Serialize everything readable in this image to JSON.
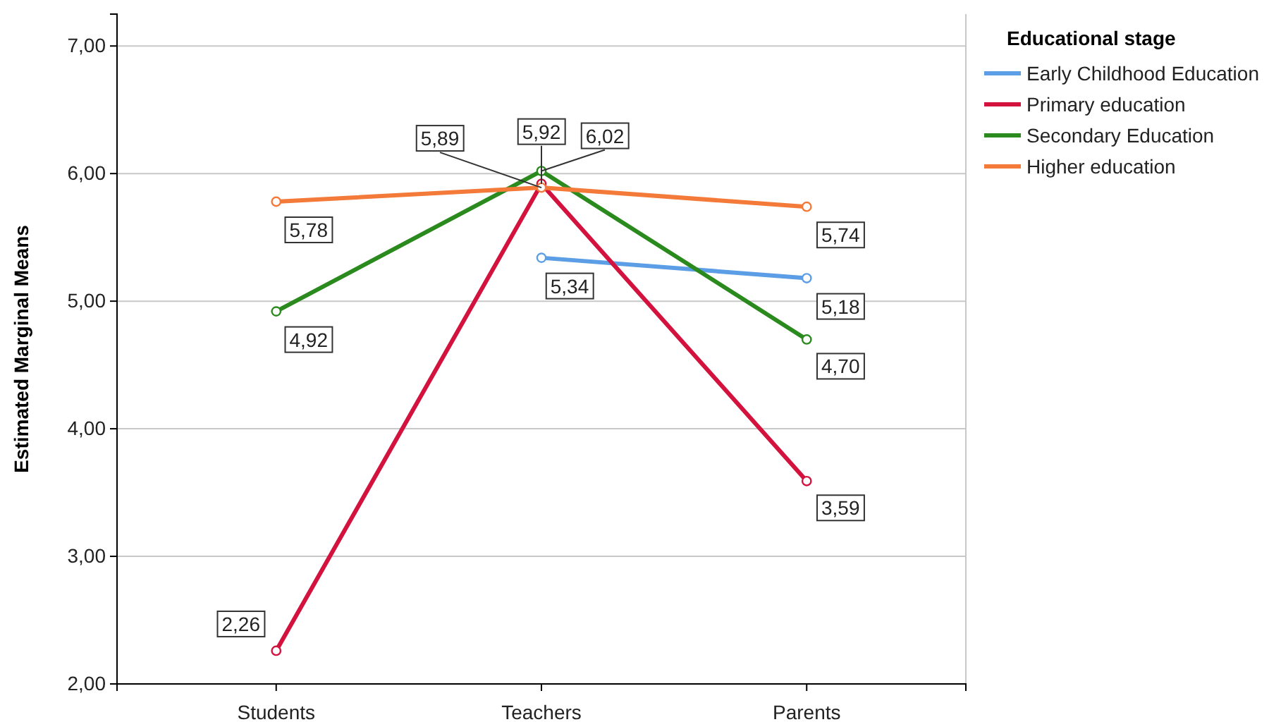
{
  "chart_data": {
    "type": "line",
    "ylabel": "Estimated Marginal Means",
    "legend_title": "Educational stage",
    "legend": "right",
    "marker": "circle",
    "line_style": "solid",
    "grid": "y",
    "categories": [
      "Students",
      "Teachers",
      "Parents"
    ],
    "ylim": [
      2,
      7.25
    ],
    "yticks": [
      {
        "value": 2,
        "label": "2,00"
      },
      {
        "value": 3,
        "label": "3,00"
      },
      {
        "value": 4,
        "label": "4,00"
      },
      {
        "value": 5,
        "label": "5,00"
      },
      {
        "value": 6,
        "label": "6,00"
      },
      {
        "value": 7,
        "label": "7,00"
      }
    ],
    "series": [
      {
        "name": "Early Childhood Education",
        "color": "#5b9ee6",
        "values": [
          null,
          5.34,
          5.18
        ],
        "value_labels": [
          null,
          "5,34",
          "5,18"
        ]
      },
      {
        "name": "Primary education",
        "color": "#d3123e",
        "values": [
          2.26,
          5.92,
          3.59
        ],
        "value_labels": [
          "2,26",
          "5,92",
          "3,59"
        ]
      },
      {
        "name": "Secondary Education",
        "color": "#2b8a1e",
        "values": [
          4.92,
          6.02,
          4.7
        ],
        "value_labels": [
          "4,92",
          "6,02",
          "4,70"
        ]
      },
      {
        "name": "Higher education",
        "color": "#f47a3a",
        "values": [
          5.78,
          5.89,
          5.74
        ],
        "value_labels": [
          "5,78",
          "5,89",
          "5,74"
        ]
      }
    ]
  }
}
